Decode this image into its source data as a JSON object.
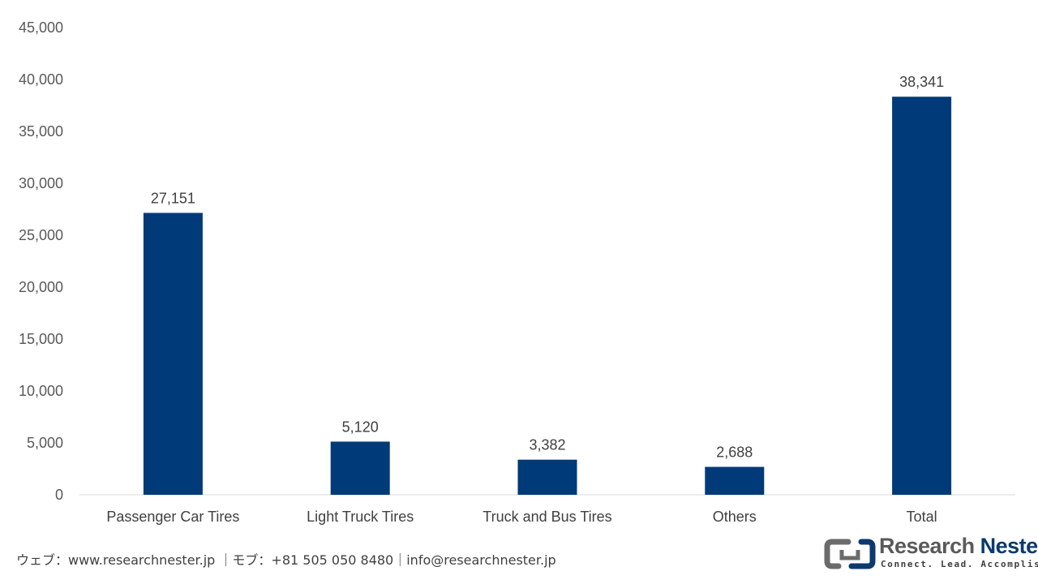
{
  "chart_data": {
    "type": "bar",
    "categories": [
      "Passenger Car Tires",
      "Light Truck Tires",
      "Truck and Bus Tires",
      "Others",
      "Total"
    ],
    "values": [
      27151,
      5120,
      3382,
      2688,
      38341
    ],
    "data_labels": [
      "27,151",
      "5,120",
      "3,382",
      "2,688",
      "38,341"
    ],
    "y_ticks": [
      "0",
      "5,000",
      "10,000",
      "15,000",
      "20,000",
      "25,000",
      "30,000",
      "35,000",
      "40,000",
      "45,000"
    ],
    "ylim": [
      0,
      45000
    ],
    "grid": false,
    "bar_color": "#003a78",
    "title": "",
    "xlabel": "",
    "ylabel": ""
  },
  "footer": {
    "text": "ウェブ：www.researchnester.jp ｜モブ：+81 505 050 8480｜info@researchnester.jp"
  },
  "logo": {
    "name_part1": "Research ",
    "name_part2": "Nester",
    "tagline": "Connect. Lead. Accomplish",
    "icon": "research-nester-logo-icon"
  }
}
